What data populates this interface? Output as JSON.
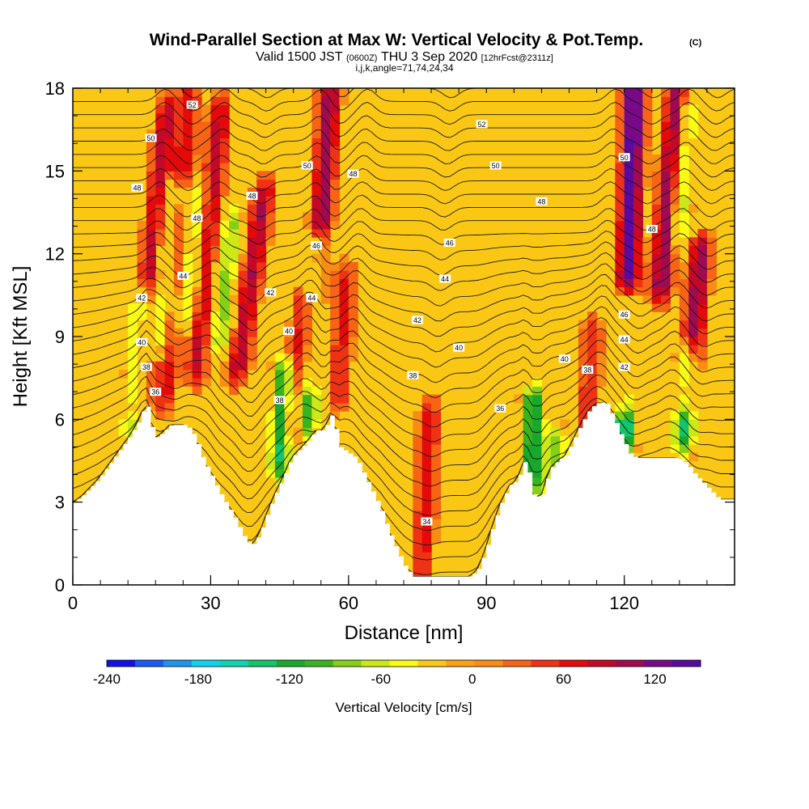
{
  "chart_data": {
    "type": "heatmap",
    "title": "Wind-Parallel Section at Max W: Vertical Velocity & Pot.Temp.",
    "title_suffix": "(C)",
    "subtitle_parts": [
      "Valid 1500 JST",
      "(0600Z)",
      "THU 3 Sep 2020",
      "[12hrFcst@2311z]"
    ],
    "subtitle2": "i,j,k,angle=71,74,24,34",
    "xlabel": "Distance [nm]",
    "ylabel": "Height [Kft MSL]",
    "xlim": [
      0,
      144
    ],
    "ylim": [
      0,
      18
    ],
    "xticks": [
      0,
      30,
      60,
      90,
      120
    ],
    "yticks": [
      0,
      3,
      6,
      9,
      12,
      15,
      18
    ],
    "colorbar": {
      "title": "Vertical Velocity [cm/s]",
      "ticks": [
        -240,
        -180,
        -120,
        -60,
        0,
        60,
        120
      ],
      "range": [
        -240,
        150
      ],
      "colors": [
        "#1010e8",
        "#1a5cf0",
        "#1a96f0",
        "#10d2f0",
        "#10d2b4",
        "#12c46a",
        "#1aa82a",
        "#38b41e",
        "#84d016",
        "#cce816",
        "#fafa14",
        "#fac814",
        "#faa014",
        "#fa8c14",
        "#f86414",
        "#f03214",
        "#e40a0a",
        "#c4082a",
        "#a00a50",
        "#780a8a",
        "#5a0aa0"
      ],
      "zero_color": "#fac814"
    },
    "contour_labels": [
      {
        "text": "52",
        "x": 26,
        "y": 17.4
      },
      {
        "text": "52",
        "x": 89,
        "y": 16.7
      },
      {
        "text": "50",
        "x": 17,
        "y": 16.2
      },
      {
        "text": "50",
        "x": 51,
        "y": 15.2
      },
      {
        "text": "50",
        "x": 92,
        "y": 15.2
      },
      {
        "text": "50",
        "x": 120,
        "y": 15.5
      },
      {
        "text": "48",
        "x": 14,
        "y": 14.4
      },
      {
        "text": "48",
        "x": 61,
        "y": 14.9
      },
      {
        "text": "48",
        "x": 39,
        "y": 14.1
      },
      {
        "text": "48",
        "x": 27,
        "y": 13.3
      },
      {
        "text": "48",
        "x": 102,
        "y": 13.9
      },
      {
        "text": "48",
        "x": 126,
        "y": 12.9
      },
      {
        "text": "46",
        "x": 82,
        "y": 12.4
      },
      {
        "text": "46",
        "x": 53,
        "y": 12.3
      },
      {
        "text": "46",
        "x": 120,
        "y": 9.8
      },
      {
        "text": "44",
        "x": 24,
        "y": 11.2
      },
      {
        "text": "44",
        "x": 81,
        "y": 11.1
      },
      {
        "text": "44",
        "x": 52,
        "y": 10.4
      },
      {
        "text": "44",
        "x": 120,
        "y": 8.9
      },
      {
        "text": "42",
        "x": 15,
        "y": 10.4
      },
      {
        "text": "42",
        "x": 43,
        "y": 10.6
      },
      {
        "text": "42",
        "x": 75,
        "y": 9.6
      },
      {
        "text": "42",
        "x": 120,
        "y": 7.9
      },
      {
        "text": "40",
        "x": 15,
        "y": 8.8
      },
      {
        "text": "40",
        "x": 47,
        "y": 9.2
      },
      {
        "text": "40",
        "x": 84,
        "y": 8.6
      },
      {
        "text": "40",
        "x": 107,
        "y": 8.2
      },
      {
        "text": "38",
        "x": 16,
        "y": 7.9
      },
      {
        "text": "38",
        "x": 74,
        "y": 7.6
      },
      {
        "text": "38",
        "x": 112,
        "y": 7.8
      },
      {
        "text": "38",
        "x": 45,
        "y": 6.7
      },
      {
        "text": "36",
        "x": 18,
        "y": 7.0
      },
      {
        "text": "36",
        "x": 93,
        "y": 6.4
      },
      {
        "text": "34",
        "x": 77,
        "y": 2.3
      }
    ],
    "terrain_height": [
      3.0,
      3.2,
      3.5,
      3.8,
      4.2,
      4.6,
      5.0,
      5.4,
      5.9,
      6.6,
      5.3,
      5.5,
      5.8,
      5.8,
      5.8,
      5.4,
      4.6,
      4.0,
      3.4,
      2.9,
      2.4,
      1.8,
      1.4,
      1.8,
      2.6,
      3.3,
      3.9,
      4.6,
      4.9,
      5.2,
      5.6,
      5.6,
      6.2,
      5.0,
      4.8,
      4.6,
      4.0,
      3.4,
      2.8,
      2.0,
      1.3,
      0.7,
      0.3,
      0.3,
      0.3,
      0.3,
      0.3,
      0.3,
      0.3,
      0.3,
      0.5,
      1.2,
      2.2,
      3.0,
      3.6,
      3.8,
      4.6,
      3.2,
      3.2,
      4.2,
      4.5,
      4.7,
      5.3,
      5.9,
      6.4,
      6.6,
      6.6,
      6.0,
      5.3,
      4.7,
      4.6,
      4.6,
      4.6,
      4.6,
      4.6,
      4.6,
      4.4,
      4.0,
      3.7,
      3.4,
      3.1,
      3.1,
      3.1
    ],
    "updrafts": [
      {
        "x": 14,
        "y0": 6.5,
        "y1": 17,
        "slope": 0.6,
        "w": 90
      },
      {
        "x": 20,
        "y0": 7,
        "y1": 17.5,
        "slope": 0.5,
        "w": 70
      },
      {
        "x": 27,
        "y0": 8,
        "y1": 17,
        "slope": 0.55,
        "w": 85
      },
      {
        "x": 36,
        "y0": 8,
        "y1": 14,
        "slope": 0.9,
        "w": 95
      },
      {
        "x": 48,
        "y0": 6,
        "y1": 10,
        "slope": 0.5,
        "w": 70
      },
      {
        "x": 52,
        "y0": 8,
        "y1": 18,
        "slope": 0.4,
        "w": 110
      },
      {
        "x": 58,
        "y0": 7,
        "y1": 11,
        "slope": 0.3,
        "w": 60
      },
      {
        "x": 76,
        "y0": 0.5,
        "y1": 6,
        "slope": 0.3,
        "w": 65
      },
      {
        "x": 112,
        "y0": 6,
        "y1": 9,
        "slope": 0.3,
        "w": 55
      },
      {
        "x": 120,
        "y0": 7,
        "y1": 18,
        "slope": 0.2,
        "w": 150
      },
      {
        "x": 128,
        "y0": 11,
        "y1": 18,
        "slope": 0.5,
        "w": 120
      },
      {
        "x": 134,
        "y0": 7,
        "y1": 12,
        "slope": 0.5,
        "w": 110
      }
    ],
    "downdrafts": [
      {
        "x": 13,
        "y0": 6,
        "y1": 10,
        "slope": 0.5,
        "w": -110
      },
      {
        "x": 19,
        "y0": 9,
        "y1": 14,
        "slope": 0.5,
        "w": -80
      },
      {
        "x": 25,
        "y0": 10,
        "y1": 14,
        "slope": 0.5,
        "w": -70
      },
      {
        "x": 32,
        "y0": 9,
        "y1": 13,
        "slope": 0.6,
        "w": -80
      },
      {
        "x": 45,
        "y0": 4.5,
        "y1": 7.5,
        "slope": 0.3,
        "w": -130
      },
      {
        "x": 51,
        "y0": 6,
        "y1": 12,
        "slope": 0.35,
        "w": -120
      },
      {
        "x": 100,
        "y0": 4,
        "y1": 6.5,
        "slope": 0.1,
        "w": -140
      },
      {
        "x": 105,
        "y0": 4,
        "y1": 5,
        "slope": 0.1,
        "w": -90
      },
      {
        "x": 120,
        "y0": 5.5,
        "y1": 10,
        "slope": 0.15,
        "w": -170
      },
      {
        "x": 133,
        "y0": 5.5,
        "y1": 8,
        "slope": 0.3,
        "w": -130
      },
      {
        "x": 132,
        "y0": 13,
        "y1": 17,
        "slope": 0.4,
        "w": -70
      }
    ]
  }
}
